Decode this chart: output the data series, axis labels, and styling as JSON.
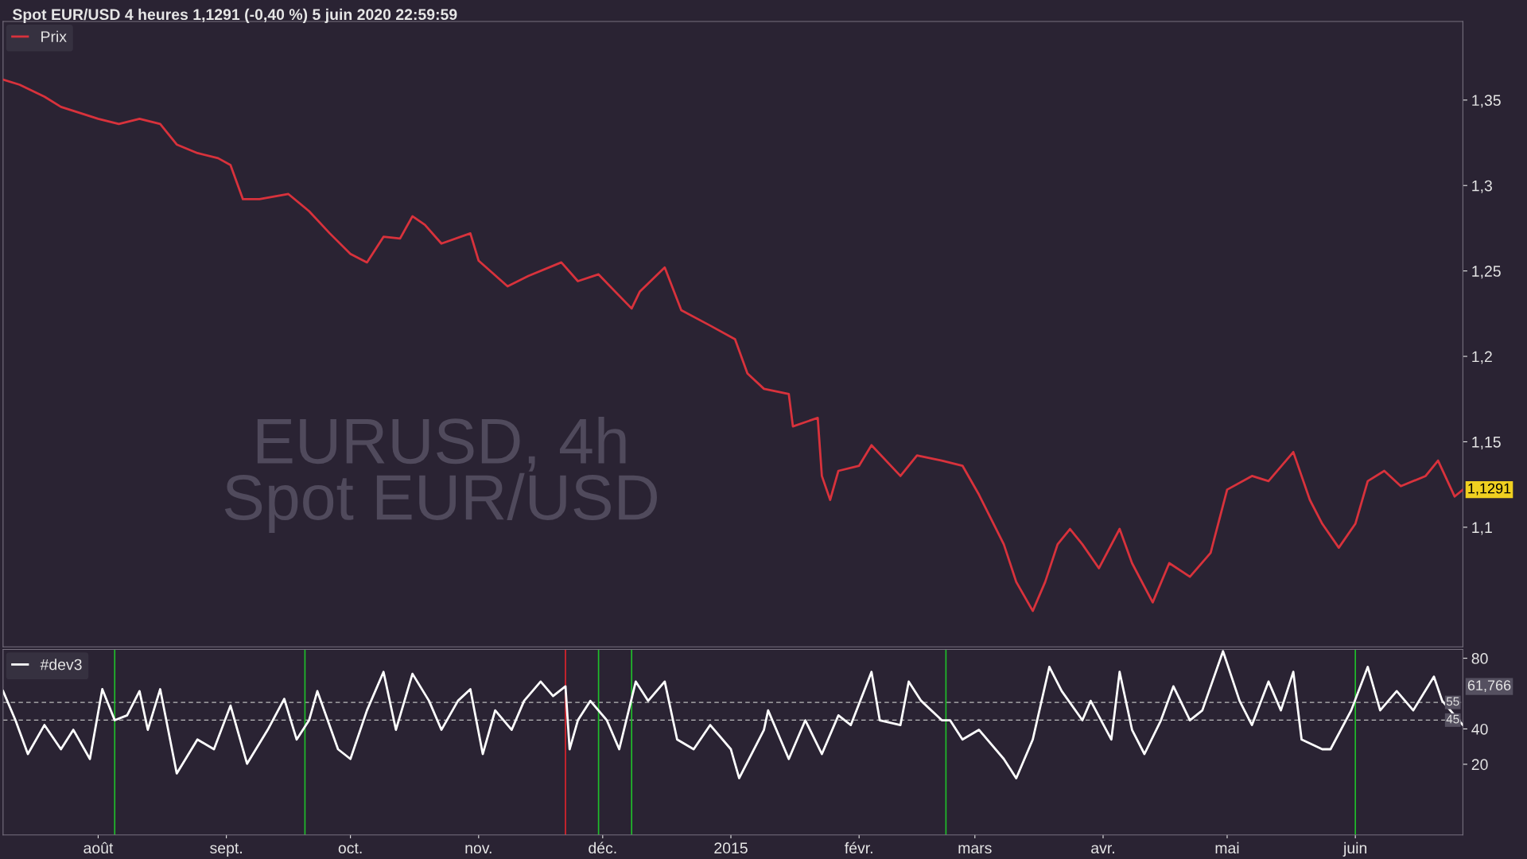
{
  "chart_data": [
    {
      "type": "line",
      "title": "Spot EUR/USD 4 heures 1,1291 (-0,40 %) 5 juin 2020 22:59:59",
      "legend": "top left",
      "grid": false,
      "tick_labels": "y",
      "annotations": [
        "EURUSD, 4h",
        "Spot EUR/USD",
        "1,1291"
      ],
      "xlim": [
        "2014-07-09",
        "2015-06-27"
      ],
      "ylim": [
        1.03,
        1.396
      ],
      "yticks": [
        {
          "value": 1.1,
          "label": "1,1"
        },
        {
          "value": 1.15,
          "label": "1,15"
        },
        {
          "value": 1.2,
          "label": "1,2"
        },
        {
          "value": 1.25,
          "label": "1,25"
        },
        {
          "value": 1.3,
          "label": "1,3"
        },
        {
          "value": 1.35,
          "label": "1,35"
        }
      ],
      "series": [
        {
          "name": "Prix",
          "color": "#d8323c",
          "x": [
            "2014-07-09",
            "2014-07-13",
            "2014-07-19",
            "2014-07-23",
            "2014-08-01",
            "2014-08-06",
            "2014-08-11",
            "2014-08-16",
            "2014-08-20",
            "2014-08-25",
            "2014-08-30",
            "2014-09-02",
            "2014-09-05",
            "2014-09-09",
            "2014-09-16",
            "2014-09-21",
            "2014-09-26",
            "2014-10-01",
            "2014-10-05",
            "2014-10-09",
            "2014-10-13",
            "2014-10-16",
            "2014-10-19",
            "2014-10-23",
            "2014-10-30",
            "2014-11-01",
            "2014-11-08",
            "2014-11-13",
            "2014-11-21",
            "2014-11-25",
            "2014-11-30",
            "2014-12-08",
            "2014-12-10",
            "2014-12-16",
            "2014-12-20",
            "2014-12-27",
            "2015-01-02",
            "2015-01-05",
            "2015-01-09",
            "2015-01-15",
            "2015-01-16",
            "2015-01-22",
            "2015-01-23",
            "2015-01-25",
            "2015-01-27",
            "2015-02-01",
            "2015-02-04",
            "2015-02-11",
            "2015-02-15",
            "2015-02-21",
            "2015-02-26",
            "2015-03-02",
            "2015-03-08",
            "2015-03-11",
            "2015-03-15",
            "2015-03-18",
            "2015-03-21",
            "2015-03-24",
            "2015-03-27",
            "2015-03-31",
            "2015-04-05",
            "2015-04-08",
            "2015-04-13",
            "2015-04-17",
            "2015-04-22",
            "2015-04-27",
            "2015-05-01",
            "2015-05-07",
            "2015-05-11",
            "2015-05-17",
            "2015-05-21",
            "2015-05-24",
            "2015-05-28",
            "2015-06-01",
            "2015-06-04",
            "2015-06-08",
            "2015-06-12",
            "2015-06-18",
            "2015-06-21",
            "2015-06-25",
            "2015-06-27"
          ],
          "values": [
            1.362,
            1.359,
            1.352,
            1.346,
            1.339,
            1.336,
            1.339,
            1.336,
            1.324,
            1.319,
            1.316,
            1.312,
            1.292,
            1.292,
            1.295,
            1.285,
            1.272,
            1.26,
            1.255,
            1.27,
            1.269,
            1.282,
            1.277,
            1.266,
            1.272,
            1.256,
            1.241,
            1.247,
            1.255,
            1.244,
            1.248,
            1.228,
            1.238,
            1.252,
            1.227,
            1.218,
            1.21,
            1.19,
            1.181,
            1.178,
            1.159,
            1.164,
            1.13,
            1.116,
            1.133,
            1.136,
            1.148,
            1.13,
            1.142,
            1.139,
            1.136,
            1.119,
            1.09,
            1.068,
            1.051,
            1.068,
            1.09,
            1.099,
            1.09,
            1.076,
            1.099,
            1.079,
            1.056,
            1.079,
            1.071,
            1.085,
            1.122,
            1.13,
            1.127,
            1.144,
            1.116,
            1.102,
            1.088,
            1.102,
            1.127,
            1.133,
            1.124,
            1.13,
            1.139,
            1.118,
            1.122
          ]
        }
      ]
    },
    {
      "type": "line",
      "legend": "top left",
      "grid": false,
      "line_style": "solid",
      "annotations": [
        "61,766"
      ],
      "xlim": [
        "2014-07-09",
        "2015-06-27"
      ],
      "ylim": [
        -20,
        85
      ],
      "yticks": [
        20,
        40,
        80
      ],
      "xticks": [
        {
          "value": "2014-08-01",
          "label": "août"
        },
        {
          "value": "2014-09-01",
          "label": "sept."
        },
        {
          "value": "2014-10-01",
          "label": "oct."
        },
        {
          "value": "2014-11-01",
          "label": "nov."
        },
        {
          "value": "2014-12-01",
          "label": "déc."
        },
        {
          "value": "2015-01-01",
          "label": "2015"
        },
        {
          "value": "2015-02-01",
          "label": "févr."
        },
        {
          "value": "2015-03-01",
          "label": "mars"
        },
        {
          "value": "2015-04-01",
          "label": "avr."
        },
        {
          "value": "2015-05-01",
          "label": "mai"
        },
        {
          "value": "2015-06-01",
          "label": "juin"
        }
      ],
      "ref_lines": [
        {
          "axis": "y",
          "value": 55,
          "label": "55",
          "color": "#bbbbbb",
          "line_style": "dashed"
        },
        {
          "axis": "y",
          "value": 45,
          "label": "45",
          "color": "#bbbbbb",
          "line_style": "dashed"
        },
        {
          "axis": "x",
          "value": "2014-08-05",
          "color": "#1fbf2a"
        },
        {
          "axis": "x",
          "value": "2014-09-20",
          "color": "#1fbf2a"
        },
        {
          "axis": "x",
          "value": "2014-11-22",
          "color": "#e0242c"
        },
        {
          "axis": "x",
          "value": "2014-11-30",
          "color": "#1fbf2a"
        },
        {
          "axis": "x",
          "value": "2014-12-08",
          "color": "#1fbf2a"
        },
        {
          "axis": "x",
          "value": "2015-02-22",
          "color": "#1fbf2a"
        },
        {
          "axis": "x",
          "value": "2015-06-01",
          "color": "#1fbf2a"
        }
      ],
      "series": [
        {
          "name": "#dev3",
          "color": "#ffffff",
          "x": [
            "2014-07-09",
            "2014-07-12",
            "2014-07-15",
            "2014-07-19",
            "2014-07-23",
            "2014-07-26",
            "2014-07-30",
            "2014-08-02",
            "2014-08-05",
            "2014-08-08",
            "2014-08-11",
            "2014-08-13",
            "2014-08-16",
            "2014-08-20",
            "2014-08-25",
            "2014-08-29",
            "2014-09-02",
            "2014-09-06",
            "2014-09-11",
            "2014-09-15",
            "2014-09-18",
            "2014-09-21",
            "2014-09-23",
            "2014-09-28",
            "2014-10-01",
            "2014-10-05",
            "2014-10-09",
            "2014-10-12",
            "2014-10-16",
            "2014-10-20",
            "2014-10-23",
            "2014-10-27",
            "2014-10-30",
            "2014-11-02",
            "2014-11-05",
            "2014-11-09",
            "2014-11-12",
            "2014-11-16",
            "2014-11-19",
            "2014-11-22",
            "2014-11-23",
            "2014-11-25",
            "2014-11-28",
            "2014-12-02",
            "2014-12-05",
            "2014-12-09",
            "2014-12-12",
            "2014-12-16",
            "2014-12-19",
            "2014-12-23",
            "2014-12-27",
            "2015-01-01",
            "2015-01-03",
            "2015-01-09",
            "2015-01-10",
            "2015-01-15",
            "2015-01-19",
            "2015-01-23",
            "2015-01-27",
            "2015-01-30",
            "2015-02-04",
            "2015-02-06",
            "2015-02-11",
            "2015-02-13",
            "2015-02-16",
            "2015-02-21",
            "2015-02-23",
            "2015-02-26",
            "2015-03-02",
            "2015-03-08",
            "2015-03-11",
            "2015-03-15",
            "2015-03-19",
            "2015-03-22",
            "2015-03-27",
            "2015-03-29",
            "2015-04-03",
            "2015-04-05",
            "2015-04-08",
            "2015-04-11",
            "2015-04-15",
            "2015-04-18",
            "2015-04-22",
            "2015-04-25",
            "2015-04-30",
            "2015-05-04",
            "2015-05-07",
            "2015-05-11",
            "2015-05-14",
            "2015-05-17",
            "2015-05-19",
            "2015-05-24",
            "2015-05-26",
            "2015-05-31",
            "2015-06-04",
            "2015-06-07",
            "2015-06-11",
            "2015-06-15",
            "2015-06-20",
            "2015-06-22",
            "2015-06-27"
          ],
          "values": [
            61.4,
            44.9,
            25.8,
            42.2,
            28.5,
            39.5,
            23,
            62.5,
            44.9,
            47.7,
            61.4,
            39.5,
            62.5,
            14.8,
            34,
            28.5,
            53.2,
            20.3,
            39.5,
            57,
            34,
            44.9,
            61.4,
            28.5,
            23,
            50.5,
            72.3,
            39.5,
            71.2,
            55.9,
            39.5,
            55.9,
            62.5,
            25.8,
            50.5,
            39.5,
            55.9,
            66.8,
            58.6,
            64.1,
            28.5,
            44.9,
            55.9,
            44.9,
            28.5,
            66.8,
            55.9,
            66.8,
            34,
            28.5,
            42.2,
            28.5,
            12.1,
            39.5,
            50.5,
            23,
            44.9,
            25.8,
            47.7,
            42.2,
            72.3,
            44.9,
            42.2,
            66.8,
            55.9,
            44.9,
            44.9,
            34,
            39.5,
            23,
            12.1,
            34,
            75.1,
            61.4,
            44.9,
            55.9,
            34,
            72.3,
            39.5,
            25.8,
            44.9,
            64.1,
            44.9,
            50.5,
            84,
            55.9,
            42.2,
            66.8,
            50.5,
            72.3,
            34,
            28.5,
            28.5,
            50.5,
            75.1,
            50.5,
            61.4,
            50.5,
            69.6,
            55.9,
            42.2
          ]
        }
      ]
    }
  ]
}
